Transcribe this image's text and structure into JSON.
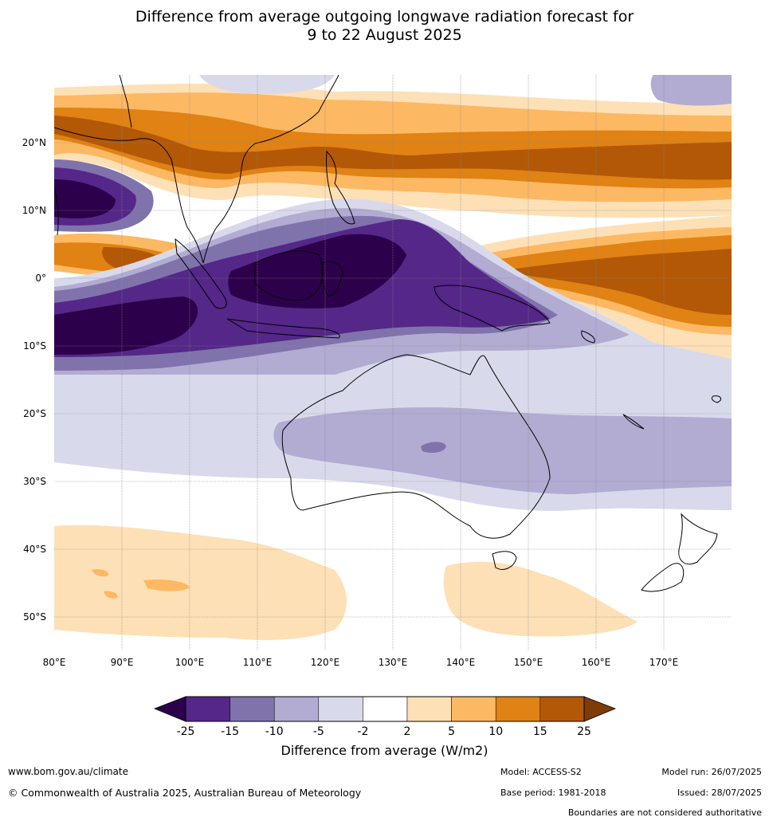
{
  "title": {
    "line1": "Difference from average outgoing longwave radiation forecast for",
    "line2": "9 to 22 August 2025"
  },
  "map": {
    "lat_labels": [
      "20°N",
      "10°N",
      "0°",
      "10°S",
      "20°S",
      "30°S",
      "40°S",
      "50°S"
    ],
    "lon_labels": [
      "80°E",
      "90°E",
      "100°E",
      "110°E",
      "120°E",
      "130°E",
      "140°E",
      "150°E",
      "160°E",
      "170°E"
    ],
    "extent": {
      "lon": [
        80,
        180
      ],
      "lat": [
        -55,
        30
      ]
    }
  },
  "colorbar": {
    "ticks": [
      "-25",
      "-15",
      "-10",
      "-5",
      "-2",
      "2",
      "5",
      "10",
      "15",
      "25"
    ],
    "colors": [
      "#2d004b",
      "#542788",
      "#8073ac",
      "#b2abd2",
      "#d8daeb",
      "#ffffff",
      "#fee0b6",
      "#fdb863",
      "#e08214",
      "#b35806",
      "#7f3b08"
    ],
    "label": "Difference from average (W/m2)"
  },
  "footer": {
    "website": "www.bom.gov.au/climate",
    "copyright": "© Commonwealth of Australia 2025, Australian Bureau of Meteorology",
    "model": "Model: ACCESS-S2",
    "base_period": "Base period: 1981-2018",
    "model_run": "Model run: 26/07/2025",
    "issued": "Issued: 28/07/2025",
    "disclaimer": "Boundaries are not considered authoritative"
  }
}
